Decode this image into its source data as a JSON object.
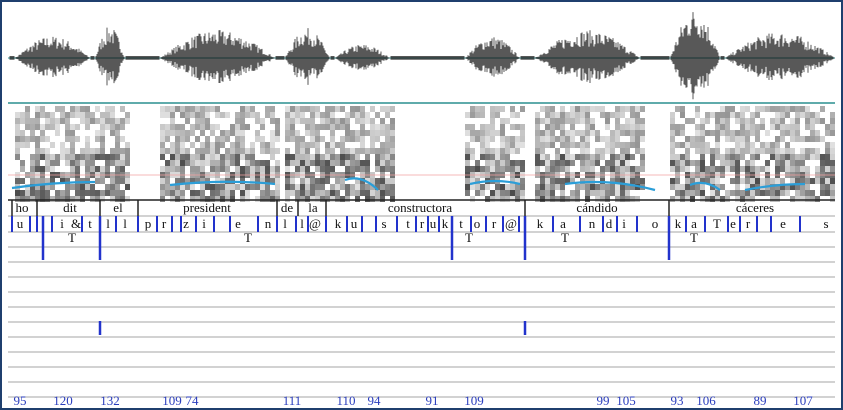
{
  "tiers": {
    "words": [
      "ho",
      "dit",
      "el",
      "president",
      "de",
      "la",
      "constructora",
      "cándido",
      "cáceres"
    ],
    "phones": [
      "u",
      "i",
      "&",
      "t",
      "l",
      "l",
      "p",
      "r",
      "z",
      "i",
      "e",
      "n",
      "l",
      "l",
      "@",
      "k",
      "u",
      "s",
      "t",
      "r",
      "u",
      "k",
      "t",
      "o",
      "r",
      "@",
      "k",
      "a",
      "n",
      "d",
      "i",
      "o",
      "k",
      "a",
      "T",
      "e",
      "r",
      "e",
      "s"
    ],
    "tones": [
      "T",
      "T",
      "T",
      "T",
      "T"
    ],
    "values": [
      95,
      120,
      132,
      109,
      74,
      111,
      110,
      94,
      91,
      109,
      99,
      105,
      93,
      106,
      89,
      107
    ]
  }
}
